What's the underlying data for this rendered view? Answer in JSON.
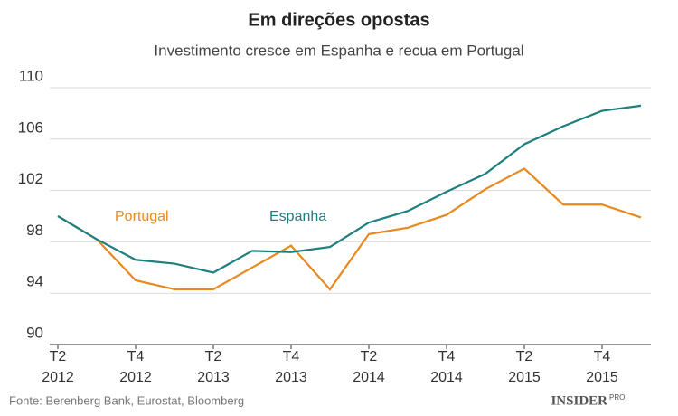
{
  "chart_data": {
    "type": "line",
    "title": "Em direções opostas",
    "subtitle": "Investimento cresce em Espanha e recua em Portugal",
    "categories": [
      "T2 2012",
      null,
      "T4 2012",
      null,
      "T2 2013",
      null,
      "T4 2013",
      null,
      "T2 2014",
      null,
      "T4 2014",
      null,
      "T2 2015",
      null,
      "T4 2015",
      null
    ],
    "series": [
      {
        "name": "Portugal",
        "color": "#e8891f",
        "values": [
          100.0,
          98.2,
          95.0,
          94.3,
          94.3,
          96.0,
          97.7,
          94.3,
          98.6,
          99.1,
          100.1,
          102.1,
          103.7,
          100.9,
          100.9,
          99.9
        ]
      },
      {
        "name": "Espanha",
        "color": "#1f7f7f",
        "values": [
          100.0,
          98.2,
          96.6,
          96.3,
          95.6,
          97.3,
          97.2,
          97.6,
          99.5,
          100.4,
          101.9,
          103.3,
          105.6,
          107.0,
          108.2,
          108.6
        ]
      }
    ],
    "ylim": [
      90,
      110
    ],
    "yticks": [
      90,
      94,
      98,
      102,
      106,
      110
    ],
    "grid": true,
    "source": "Fonte: Berenberg Bank, Eurostat, Bloomberg",
    "logo": {
      "main": "INSIDER",
      "sub": "PRO"
    }
  }
}
